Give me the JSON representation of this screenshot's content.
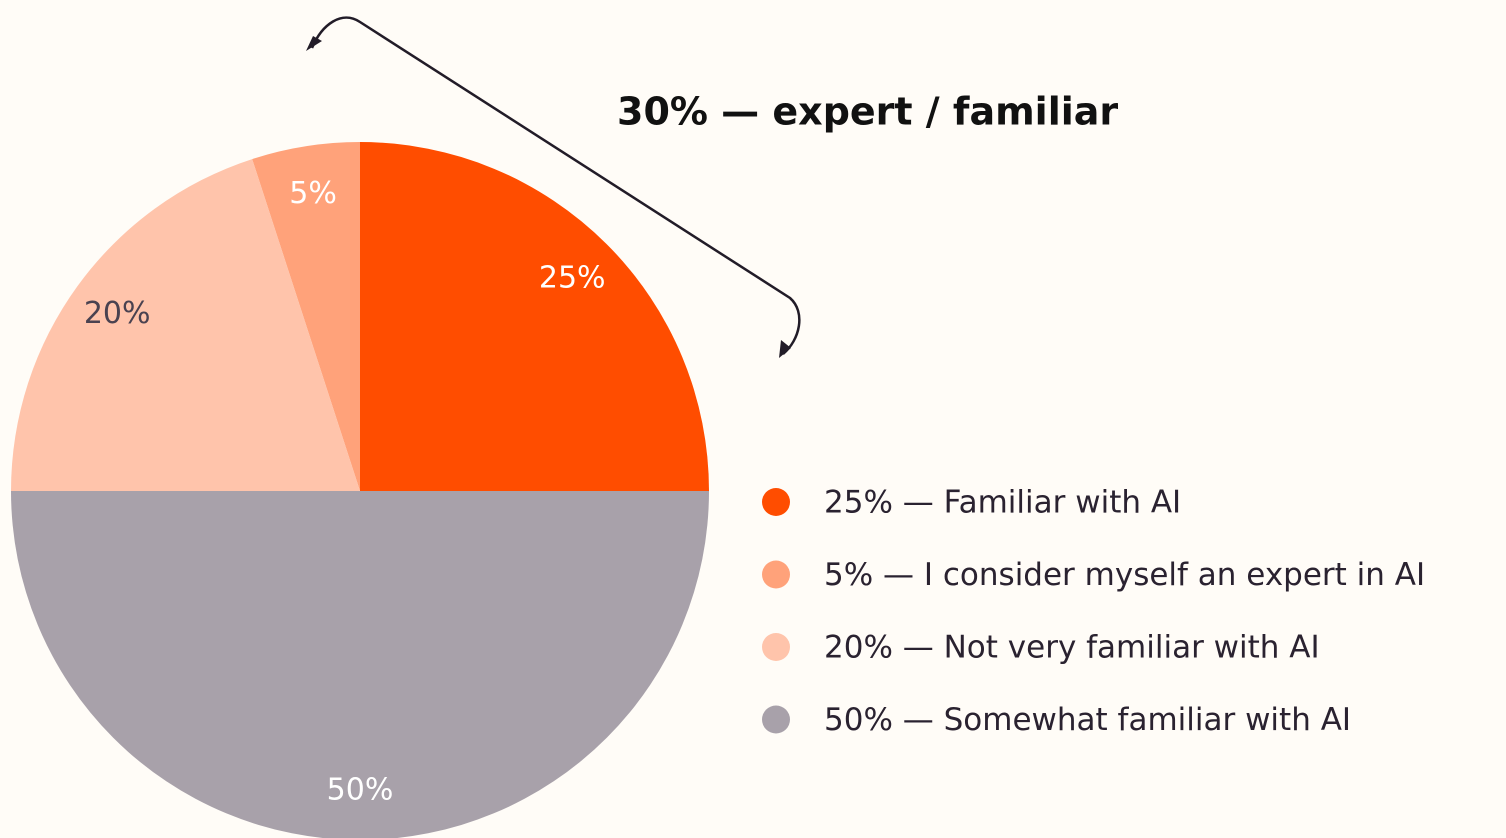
{
  "chart_data": {
    "type": "pie",
    "annotation": "30% — expert / familiar",
    "categories": [
      "25% — Familiar with AI",
      "5% — I consider myself an expert in AI",
      "20% — Not very familiar with AI",
      "50% — Somewhat familiar with AI"
    ],
    "values": [
      25,
      5,
      20,
      50
    ],
    "value_labels": [
      "25%",
      "5%",
      "20%",
      "50%"
    ],
    "colors": [
      "#ff4d00",
      "#ffa27a",
      "#ffc4ab",
      "#a8a1aa"
    ],
    "legend": "right"
  }
}
